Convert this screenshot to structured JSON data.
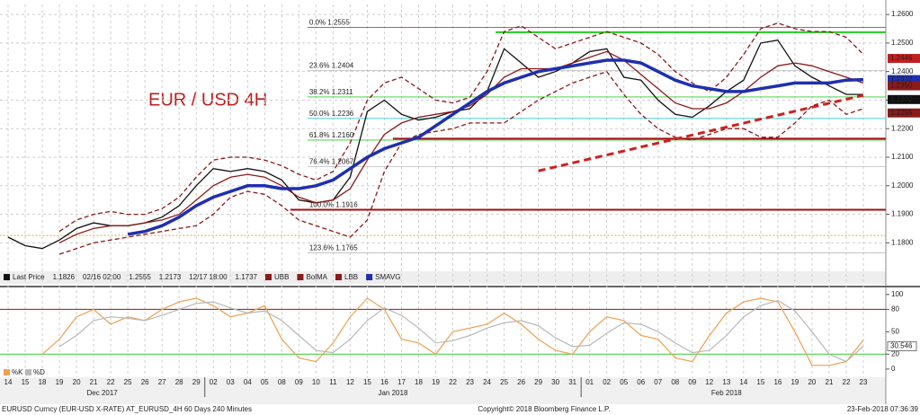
{
  "chart_data": {
    "type": "line",
    "title": "EUR / USD 4H",
    "categories": [
      "14",
      "15",
      "18",
      "19",
      "20",
      "21",
      "22",
      "25",
      "26",
      "27",
      "28",
      "29",
      "02",
      "03",
      "04",
      "05",
      "08",
      "09",
      "10",
      "11",
      "12",
      "15",
      "16",
      "17",
      "18",
      "19",
      "22",
      "23",
      "24",
      "25",
      "26",
      "29",
      "30",
      "31",
      "01",
      "02",
      "05",
      "06",
      "07",
      "08",
      "09",
      "12",
      "13",
      "14",
      "15",
      "16",
      "19",
      "20",
      "21",
      "22",
      "23"
    ],
    "x_groups": [
      {
        "label": "Dec 2017",
        "start": 0,
        "end": 11
      },
      {
        "label": "Jan 2018",
        "start": 12,
        "end": 33
      },
      {
        "label": "Feb 2018",
        "start": 34,
        "end": 50
      }
    ],
    "ylim": [
      1.165,
      1.2635
    ],
    "yticks": [
      {
        "value": 1.18,
        "label": "1.1800"
      },
      {
        "value": 1.19,
        "label": "1.1900"
      },
      {
        "value": 1.2,
        "label": "1.2000"
      },
      {
        "value": 1.21,
        "label": "1.2100"
      },
      {
        "value": 1.22,
        "label": "1.2200"
      },
      {
        "value": 1.23,
        "label": "1.2300"
      },
      {
        "value": 1.24,
        "label": "1.2400"
      },
      {
        "value": 1.25,
        "label": "1.2500"
      },
      {
        "value": 1.26,
        "label": "1.2600"
      }
    ],
    "grid": true,
    "series": [
      {
        "name": "Last Price",
        "color": "#111111",
        "values": [
          1.182,
          1.179,
          1.178,
          1.181,
          1.185,
          1.187,
          1.186,
          1.186,
          1.187,
          1.189,
          1.193,
          1.2,
          1.206,
          1.205,
          1.206,
          1.205,
          1.202,
          1.195,
          1.194,
          1.195,
          1.203,
          1.226,
          1.23,
          1.225,
          1.223,
          1.224,
          1.226,
          1.227,
          1.233,
          1.248,
          1.243,
          1.238,
          1.24,
          1.243,
          1.247,
          1.248,
          1.238,
          1.237,
          1.23,
          1.225,
          1.224,
          1.228,
          1.233,
          1.237,
          1.25,
          1.251,
          1.242,
          1.238,
          1.235,
          1.232,
          1.232
        ]
      },
      {
        "name": "UBB",
        "color": "#8b1a1a",
        "dash": true,
        "values": [
          null,
          null,
          null,
          1.184,
          1.188,
          1.19,
          1.191,
          1.19,
          1.19,
          1.192,
          1.196,
          1.203,
          1.209,
          1.21,
          1.21,
          1.209,
          1.207,
          1.204,
          1.202,
          1.205,
          1.215,
          1.23,
          1.236,
          1.238,
          1.234,
          1.23,
          1.229,
          1.231,
          1.24,
          1.254,
          1.256,
          1.252,
          1.248,
          1.25,
          1.252,
          1.254,
          1.252,
          1.25,
          1.246,
          1.24,
          1.236,
          1.233,
          1.238,
          1.246,
          1.255,
          1.257,
          1.255,
          1.254,
          1.254,
          1.252,
          1.246
        ]
      },
      {
        "name": "BolMA",
        "color": "#8b1a1a",
        "values": [
          null,
          null,
          null,
          1.18,
          1.183,
          1.185,
          1.186,
          1.186,
          1.187,
          1.188,
          1.19,
          1.195,
          1.2,
          1.203,
          1.204,
          1.203,
          1.2,
          1.196,
          1.194,
          1.195,
          1.199,
          1.209,
          1.218,
          1.222,
          1.224,
          1.225,
          1.226,
          1.228,
          1.232,
          1.238,
          1.241,
          1.241,
          1.241,
          1.243,
          1.245,
          1.247,
          1.244,
          1.239,
          1.234,
          1.229,
          1.227,
          1.227,
          1.229,
          1.233,
          1.238,
          1.242,
          1.243,
          1.242,
          1.24,
          1.238,
          1.236
        ]
      },
      {
        "name": "LBB",
        "color": "#8b1a1a",
        "dash": true,
        "values": [
          null,
          null,
          null,
          1.176,
          1.178,
          1.18,
          1.181,
          1.182,
          1.183,
          1.184,
          1.185,
          1.186,
          1.19,
          1.196,
          1.198,
          1.197,
          1.193,
          1.188,
          1.186,
          1.184,
          1.182,
          1.188,
          1.205,
          1.215,
          1.218,
          1.219,
          1.22,
          1.222,
          1.222,
          1.222,
          1.226,
          1.23,
          1.233,
          1.236,
          1.238,
          1.24,
          1.232,
          1.225,
          1.22,
          1.217,
          1.216,
          1.218,
          1.22,
          1.22,
          1.217,
          1.217,
          1.222,
          1.228,
          1.23,
          1.225,
          1.227
        ]
      },
      {
        "name": "SMAVG",
        "color": "#1f2fb0",
        "width": 3.5,
        "values": [
          null,
          null,
          null,
          null,
          null,
          null,
          null,
          1.183,
          1.184,
          1.186,
          1.189,
          1.193,
          1.196,
          1.198,
          1.2,
          1.2,
          1.199,
          1.199,
          1.2,
          1.202,
          1.206,
          1.21,
          1.213,
          1.215,
          1.217,
          1.221,
          1.225,
          1.229,
          1.233,
          1.236,
          1.238,
          1.24,
          1.241,
          1.242,
          1.243,
          1.244,
          1.244,
          1.243,
          1.24,
          1.237,
          1.235,
          1.234,
          1.233,
          1.233,
          1.234,
          1.235,
          1.236,
          1.236,
          1.236,
          1.237,
          1.2372
        ]
      }
    ],
    "legend_stats": [
      "Last Price",
      "1.1826",
      "02/16 02:00",
      "1.2555",
      "1.2173",
      "12/17 18:00",
      "1.1737"
    ],
    "fib_levels": [
      {
        "label": "0.0% 1.2555",
        "value": 1.2555,
        "color": "#c04040"
      },
      {
        "label": "23.6% 1.2404",
        "value": 1.2404,
        "color": "#bbbbbb"
      },
      {
        "label": "38.2% 1.2311",
        "value": 1.2311,
        "color": "#33cc33"
      },
      {
        "label": "50.0% 1.2236",
        "value": 1.2236,
        "color": "#33cccc"
      },
      {
        "label": "61.8% 1.2160",
        "value": 1.216,
        "color": "#33cc33"
      },
      {
        "label": "76.4% 1.2067",
        "value": 1.2067,
        "color": "#bbbbbb"
      },
      {
        "label": "100.0% 1.1916",
        "value": 1.1916,
        "color": "#c04040"
      },
      {
        "label": "123.6% 1.1765",
        "value": 1.1765,
        "color": "#bbbbbb"
      }
    ],
    "hlines": [
      {
        "value": 1.2538,
        "color": "#22cc22",
        "from": 29
      },
      {
        "value": 1.2165,
        "color": "#a01010",
        "from": 23
      },
      {
        "value": 1.1916,
        "color": "#a01010",
        "from": 17
      },
      {
        "value": 1.1826,
        "color": "#e0a030",
        "from": 0
      }
    ],
    "trendline": {
      "start": [
        31,
        1.2052
      ],
      "end": [
        50,
        1.2317
      ],
      "color": "#d02020"
    },
    "price_tags": [
      {
        "value": 1.2446,
        "label": "1.2446",
        "color": "#c02020"
      },
      {
        "value": 1.2372,
        "label": "1.2372",
        "color": "#1f2fb0"
      },
      {
        "value": 1.235,
        "label": "1.2350",
        "color": "#8b1a1a"
      },
      {
        "value": 1.2302,
        "label": "1.2302",
        "color": "#111111"
      },
      {
        "value": 1.2255,
        "label": "1.2255",
        "color": "#8b1a1a"
      }
    ],
    "lower_panel": {
      "ylim": [
        -11,
        107
      ],
      "yticks": [
        0,
        20,
        50,
        80,
        100
      ],
      "series": [
        {
          "name": "%K",
          "color": "#f0a050",
          "values": [
            null,
            null,
            20,
            40,
            70,
            80,
            60,
            70,
            65,
            80,
            90,
            95,
            85,
            70,
            75,
            85,
            40,
            15,
            10,
            35,
            70,
            95,
            80,
            40,
            35,
            20,
            50,
            55,
            60,
            75,
            60,
            40,
            25,
            20,
            50,
            70,
            65,
            45,
            40,
            15,
            10,
            45,
            75,
            90,
            95,
            90,
            50,
            5,
            5,
            10,
            39
          ]
        },
        {
          "name": "%D",
          "color": "#b8b8b8",
          "values": [
            null,
            null,
            null,
            30,
            45,
            65,
            70,
            68,
            65,
            72,
            80,
            88,
            90,
            82,
            75,
            78,
            65,
            45,
            25,
            22,
            40,
            65,
            82,
            72,
            55,
            35,
            38,
            45,
            55,
            62,
            65,
            58,
            42,
            30,
            32,
            48,
            62,
            60,
            50,
            35,
            22,
            25,
            45,
            70,
            85,
            92,
            78,
            50,
            20,
            10,
            30.546
          ]
        }
      ],
      "hlines": [
        {
          "value": 80,
          "color": "#a01010"
        },
        {
          "value": 20,
          "color": "#33cc33"
        }
      ],
      "tags": [
        30.546
      ]
    },
    "footer": {
      "left": "EURUSD Curncy (EUR-USD X-RATE) AT_EURUSD_4H 60 Days 240 Minutes",
      "center": "Copyright© 2018 Bloomberg Finance L.P.",
      "right": "23-Feb-2018 07:36:39"
    }
  }
}
